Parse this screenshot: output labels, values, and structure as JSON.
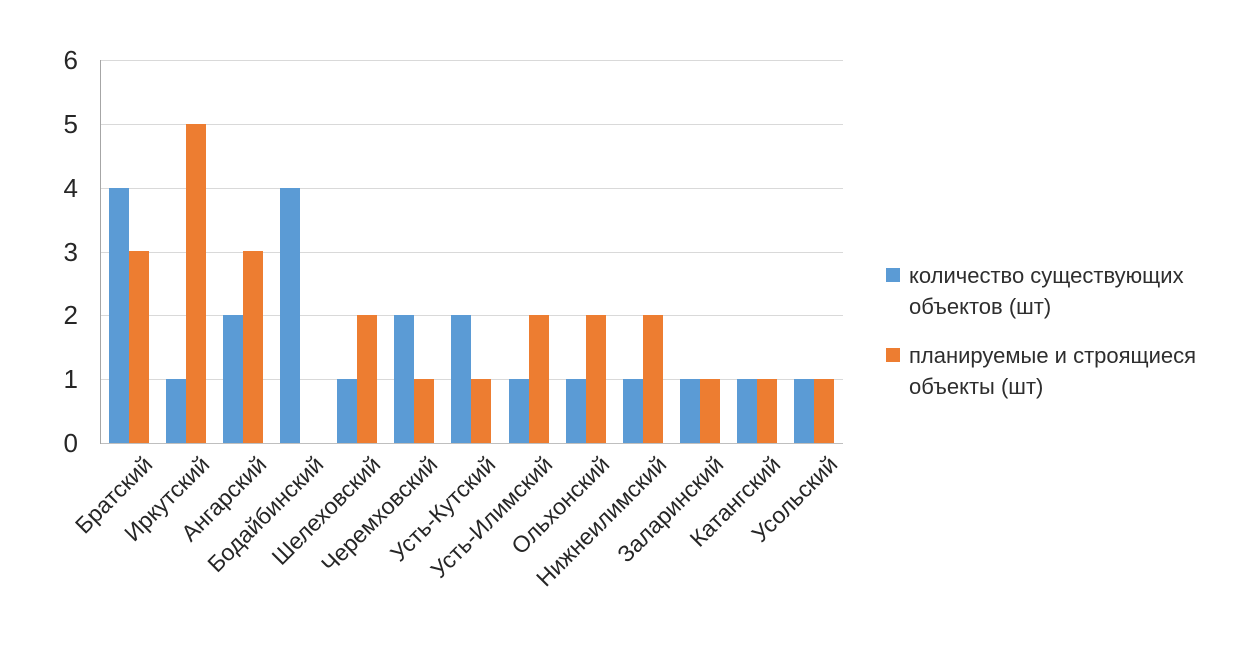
{
  "chart_data": {
    "type": "bar",
    "categories": [
      "Братский",
      "Иркутский",
      "Ангарский",
      "Бодайбинский",
      "Шелеховский",
      "Черемховский",
      "Усть-Кутский",
      "Усть-Илимский",
      "Ольхонский",
      "Нижнеилимский",
      "Заларинский",
      "Катангский",
      "Усольский"
    ],
    "series": [
      {
        "name": "количество существующих объектов (шт)",
        "color": "#5B9BD5",
        "values": [
          4,
          1,
          2,
          4,
          1,
          2,
          2,
          1,
          1,
          1,
          1,
          1,
          1
        ]
      },
      {
        "name": "планируемые и строящиеся объекты  (шт)",
        "color": "#ED7D31",
        "values": [
          3,
          5,
          3,
          0,
          2,
          1,
          1,
          2,
          2,
          2,
          1,
          1,
          1
        ]
      }
    ],
    "title": "",
    "xlabel": "",
    "ylabel": "",
    "ylim": [
      0,
      6
    ],
    "yticks": [
      0,
      1,
      2,
      3,
      4,
      5,
      6
    ],
    "grid": true,
    "legend_position": "right"
  },
  "colors": {
    "series_blue": "#5B9BD5",
    "series_orange": "#ED7D31",
    "gridline": "#d9d9d9",
    "axis": "#a6a6a6",
    "text": "#262626",
    "background": "#ffffff"
  }
}
